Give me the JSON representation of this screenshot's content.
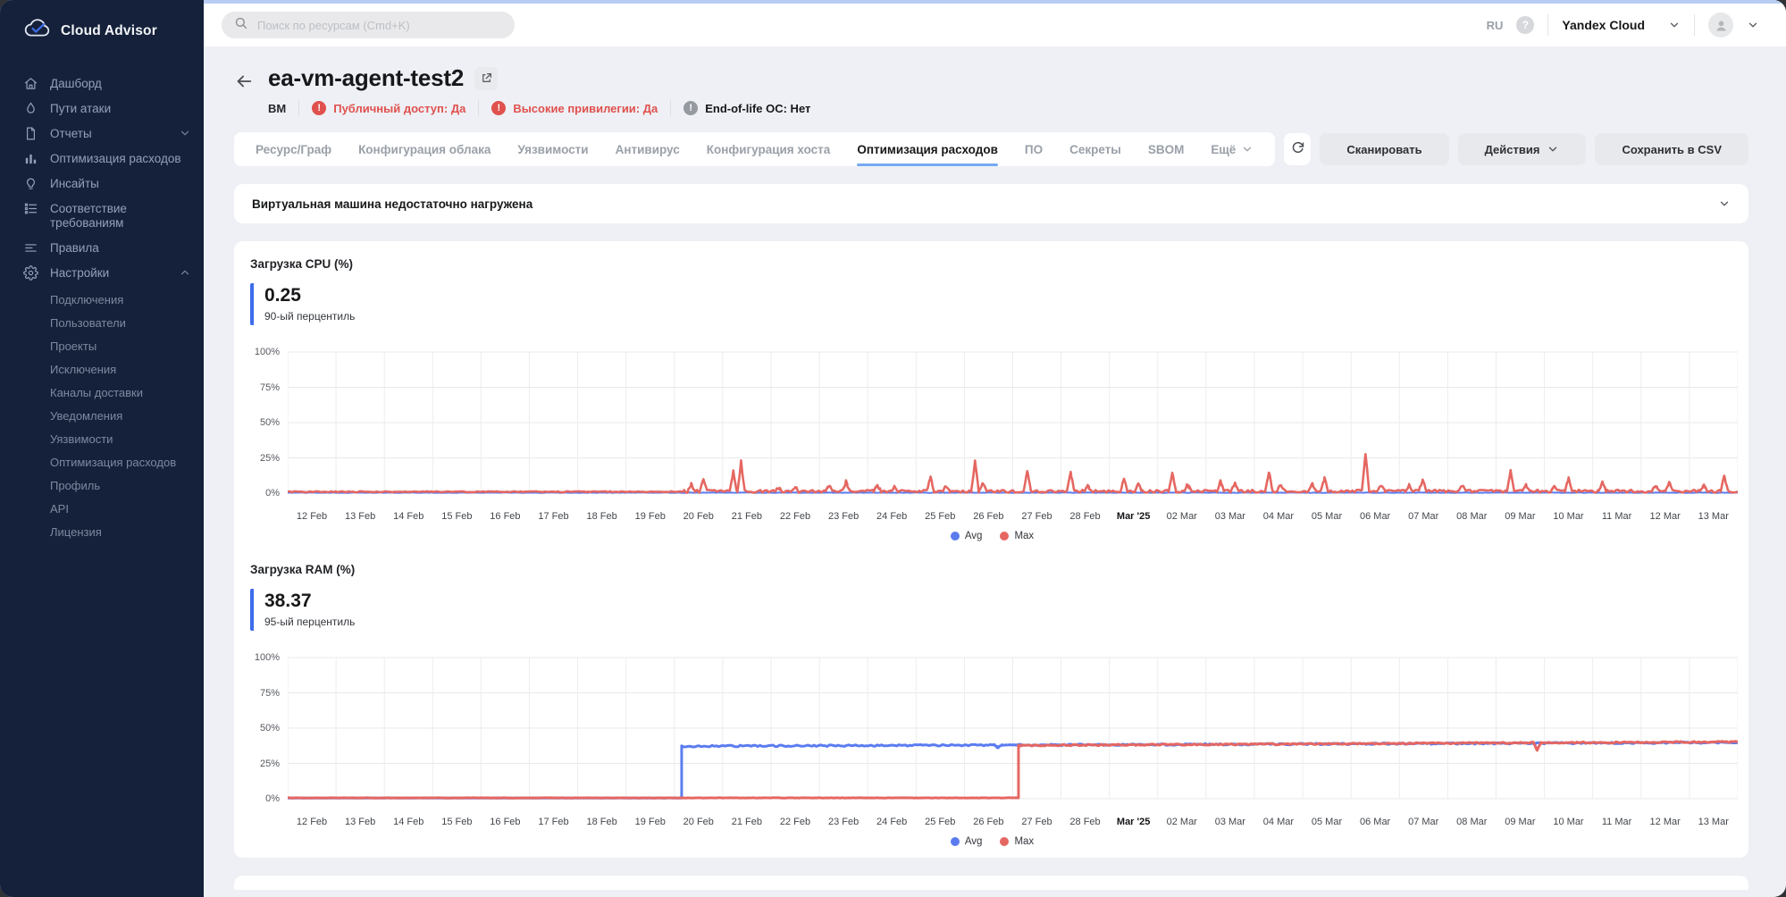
{
  "theme": {
    "accent_blue": "#3d6dea",
    "tab_underline": "#76aaf2",
    "critical_red": "#e0514e",
    "avg_blue": "#5b7cf0",
    "max_red": "#e56762",
    "sidebar_bg": "#15213a"
  },
  "brand": {
    "name": "Cloud Advisor"
  },
  "topbar": {
    "search_placeholder": "Поиск по ресурсам (Cmd+K)",
    "language": "RU",
    "org": "Yandex Cloud"
  },
  "sidebar": {
    "items": [
      {
        "label": "Дашборд",
        "icon": "home"
      },
      {
        "label": "Пути атаки",
        "icon": "flame"
      },
      {
        "label": "Отчеты",
        "icon": "document",
        "chevron": "down"
      },
      {
        "label": "Оптимизация расходов",
        "icon": "bar-chart"
      },
      {
        "label": "Инсайты",
        "icon": "lightbulb"
      },
      {
        "label": "Соответствие требованиям",
        "icon": "checklist"
      },
      {
        "label": "Правила",
        "icon": "rules"
      },
      {
        "label": "Настройки",
        "icon": "gear",
        "chevron": "up"
      }
    ],
    "subitems": [
      "Подключения",
      "Пользователи",
      "Проекты",
      "Исключения",
      "Каналы доставки",
      "Уведомления",
      "Уязвимости",
      "Оптимизация расходов",
      "Профиль",
      "API",
      "Лицензия"
    ]
  },
  "header": {
    "title": "ea-vm-agent-test2",
    "resource_type": "ВМ",
    "badges": [
      {
        "label": "Публичный доступ: Да",
        "severity": "critical"
      },
      {
        "label": "Высокие привилегии: Да",
        "severity": "critical"
      },
      {
        "label": "End-of-life ОС: Нет",
        "severity": "neutral"
      }
    ]
  },
  "tabs": {
    "items": [
      {
        "label": "Ресурс/Граф"
      },
      {
        "label": "Конфигурация облака"
      },
      {
        "label": "Уязвимости"
      },
      {
        "label": "Антивирус"
      },
      {
        "label": "Конфигурация хоста"
      },
      {
        "label": "Оптимизация расходов",
        "active": true
      },
      {
        "label": "ПО"
      },
      {
        "label": "Секреты"
      },
      {
        "label": "SBOM"
      },
      {
        "label": "Ещё",
        "chevron": true
      }
    ]
  },
  "actions": {
    "scan": "Сканировать",
    "actions_menu": "Действия",
    "save_csv": "Сохранить в CSV"
  },
  "alert": {
    "title": "Виртуальная машина недостаточно нагружена"
  },
  "chart_data": [
    {
      "type": "line",
      "title": "Загрузка CPU (%)",
      "metric_value": "0.25",
      "metric_caption": "90-ый перцентиль",
      "ylim": [
        0,
        100
      ],
      "y_ticks": [
        "0%",
        "25%",
        "50%",
        "75%",
        "100%"
      ],
      "x_domain_days": [
        0,
        30
      ],
      "x_labels": [
        "12 Feb",
        "13 Feb",
        "14 Feb",
        "15 Feb",
        "16 Feb",
        "17 Feb",
        "18 Feb",
        "19 Feb",
        "20 Feb",
        "21 Feb",
        "22 Feb",
        "23 Feb",
        "24 Feb",
        "25 Feb",
        "26 Feb",
        "27 Feb",
        "28 Feb",
        "Mar '25",
        "02 Mar",
        "03 Mar",
        "04 Mar",
        "05 Mar",
        "06 Mar",
        "07 Mar",
        "08 Mar",
        "09 Mar",
        "10 Mar",
        "11 Mar",
        "12 Mar",
        "13 Mar"
      ],
      "legend": [
        {
          "name": "Avg",
          "color": "#5b7cf0"
        },
        {
          "name": "Max",
          "color": "#e56762"
        }
      ],
      "series": [
        {
          "name": "Avg",
          "color": "#5b7cf0",
          "width": 2,
          "segments": [
            {
              "from": 0,
              "to": 30,
              "start": 0.35,
              "end": 0.35,
              "noise": 0.15
            }
          ],
          "spikes": []
        },
        {
          "name": "Max",
          "color": "#e56762",
          "width": 2.6,
          "segments": [
            {
              "from": 0,
              "to": 8.2,
              "start": 1.0,
              "end": 1.0,
              "noise": 0.35
            },
            {
              "from": 8.2,
              "to": 30,
              "start": 1.3,
              "end": 1.5,
              "noise": 1.0
            }
          ],
          "spikes": [
            [
              8.35,
              5
            ],
            [
              8.6,
              9
            ],
            [
              9.22,
              14
            ],
            [
              9.38,
              21
            ],
            [
              10.15,
              3
            ],
            [
              10.5,
              3.5
            ],
            [
              11.2,
              4
            ],
            [
              11.55,
              7
            ],
            [
              12.2,
              4.5
            ],
            [
              12.55,
              3
            ],
            [
              13.3,
              10
            ],
            [
              13.62,
              4
            ],
            [
              14.22,
              22
            ],
            [
              14.38,
              6
            ],
            [
              15.3,
              15
            ],
            [
              16.2,
              13.5
            ],
            [
              16.55,
              4
            ],
            [
              17.3,
              8.5
            ],
            [
              17.6,
              5
            ],
            [
              18.3,
              13.5
            ],
            [
              18.62,
              5
            ],
            [
              19.3,
              7
            ],
            [
              19.6,
              6
            ],
            [
              20.3,
              14
            ],
            [
              20.55,
              5
            ],
            [
              21.2,
              5.5
            ],
            [
              21.45,
              9
            ],
            [
              22.3,
              26
            ],
            [
              22.62,
              4
            ],
            [
              23.2,
              4.5
            ],
            [
              23.48,
              8.5
            ],
            [
              24.3,
              4
            ],
            [
              25.3,
              15
            ],
            [
              25.62,
              4
            ],
            [
              26.2,
              3.5
            ],
            [
              26.5,
              9
            ],
            [
              27.2,
              6.5
            ],
            [
              28.3,
              4
            ],
            [
              28.58,
              6.5
            ],
            [
              29.3,
              4.5
            ],
            [
              29.72,
              11
            ]
          ]
        }
      ]
    },
    {
      "type": "line",
      "title": "Загрузка RAM (%)",
      "metric_value": "38.37",
      "metric_caption": "95-ый перцентиль",
      "ylim": [
        0,
        100
      ],
      "y_ticks": [
        "0%",
        "25%",
        "50%",
        "75%",
        "100%"
      ],
      "x_domain_days": [
        0,
        30
      ],
      "x_labels": [
        "12 Feb",
        "13 Feb",
        "14 Feb",
        "15 Feb",
        "16 Feb",
        "17 Feb",
        "18 Feb",
        "19 Feb",
        "20 Feb",
        "21 Feb",
        "22 Feb",
        "23 Feb",
        "24 Feb",
        "25 Feb",
        "26 Feb",
        "27 Feb",
        "28 Feb",
        "Mar '25",
        "02 Mar",
        "03 Mar",
        "04 Mar",
        "05 Mar",
        "06 Mar",
        "07 Mar",
        "08 Mar",
        "09 Mar",
        "10 Mar",
        "11 Mar",
        "12 Mar",
        "13 Mar"
      ],
      "legend": [
        {
          "name": "Avg",
          "color": "#5b7cf0"
        },
        {
          "name": "Max",
          "color": "#e56762"
        }
      ],
      "series": [
        {
          "name": "Avg",
          "color": "#5b7cf0",
          "width": 3,
          "segments": [
            {
              "from": 0,
              "to": 8.15,
              "start": 0.5,
              "end": 0.5,
              "noise": 0.08
            },
            {
              "from": 8.15,
              "to": 30,
              "start": 37.2,
              "end": 39.8,
              "noise": 0.55
            }
          ],
          "spikes": [
            [
              14.7,
              -1.8
            ]
          ]
        },
        {
          "name": "Max",
          "color": "#e56762",
          "width": 3,
          "segments": [
            {
              "from": 0,
              "to": 15.12,
              "start": 0.6,
              "end": 0.6,
              "noise": 0.1
            },
            {
              "from": 15.12,
              "to": 30,
              "start": 37.8,
              "end": 40.3,
              "noise": 0.5
            }
          ],
          "spikes": [
            [
              25.85,
              -5
            ]
          ]
        }
      ]
    }
  ]
}
